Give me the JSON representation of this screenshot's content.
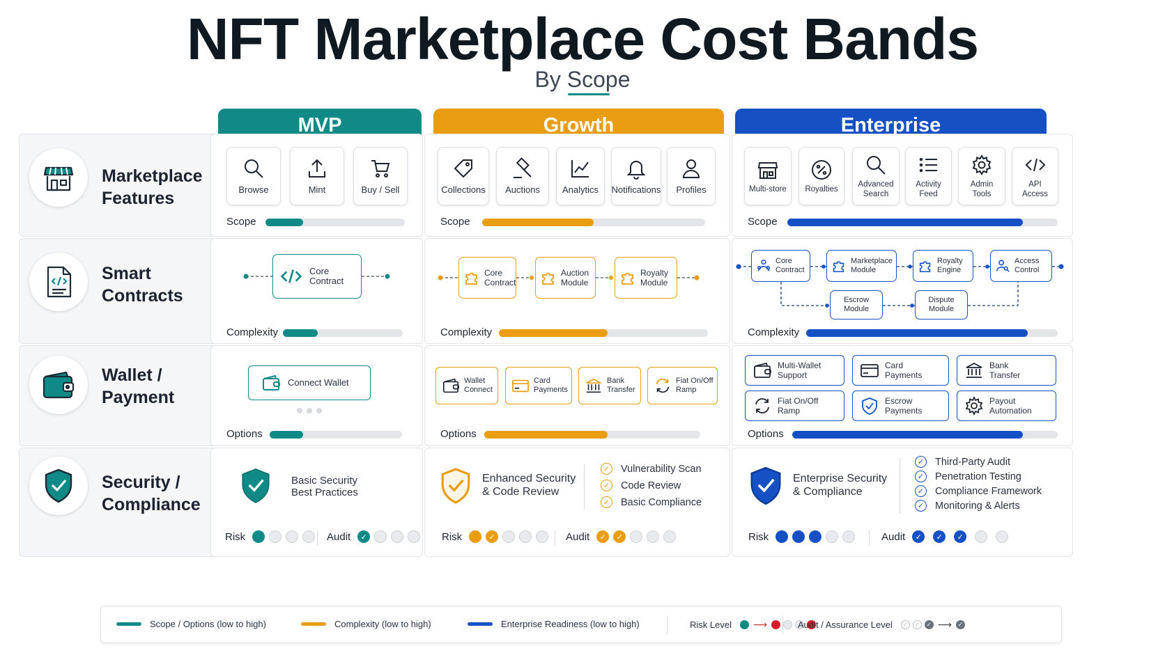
{
  "title": "NFT Marketplace Cost Bands",
  "subtitle": "By Scope",
  "columns": [
    {
      "label": "MVP",
      "color": "#0f8a86"
    },
    {
      "label": "Growth",
      "color": "#e89d12"
    },
    {
      "label": "Enterprise",
      "color": "#1550c4"
    }
  ],
  "rows": {
    "features": "Marketplace Features",
    "contracts": "Smart Contracts",
    "wallet": "Wallet / Payment",
    "security": "Security / Compliance"
  },
  "features": {
    "mvp": [
      "Browse",
      "Mint",
      "Buy / Sell"
    ],
    "growth": [
      "Collections",
      "Auctions",
      "Analytics",
      "Notifications",
      "Profiles"
    ],
    "enterprise": [
      "Multi-store",
      "Royalties",
      "Advanced Search",
      "Activity Feed",
      "Admin Tools",
      "API Access"
    ],
    "meter_label": "Scope",
    "levels": {
      "mvp": 0.21,
      "growth": 0.42,
      "enterprise": 0.76
    }
  },
  "contracts": {
    "mvp": [
      "Core Contract"
    ],
    "growth": [
      "Core Contract",
      "Auction Module",
      "Royalty Module"
    ],
    "enterprise_top": [
      "Core Contract",
      "Marketplace Module",
      "Royalty Engine",
      "Access Control"
    ],
    "enterprise_bottom": [
      "Escrow Module",
      "Dispute Module"
    ],
    "meter_label": "Complexity",
    "levels": {
      "mvp": 0.29,
      "growth": 0.52,
      "enterprise": 0.88
    }
  },
  "wallet": {
    "mvp": [
      "Connect Wallet"
    ],
    "growth": [
      "Wallet Connect",
      "Card Payments",
      "Bank Transfer",
      "Fiat On/Off Ramp"
    ],
    "enterprise": [
      "Multi-Wallet Support",
      "Card Payments",
      "Bank Transfer",
      "Fiat On/Off Ramp",
      "Escrow Payments",
      "Payout Automation"
    ],
    "meter_label": "Options",
    "levels": {
      "mvp": 0.25,
      "growth": 0.57,
      "enterprise": 0.87
    }
  },
  "security": {
    "mvp": {
      "title": "Basic Security Best Practices",
      "risk": 1,
      "audit": 1,
      "checks": []
    },
    "growth": {
      "title": "Enhanced Security & Code Review",
      "risk": 2,
      "audit": 2,
      "checks": [
        "Vulnerability Scan",
        "Code Review",
        "Basic Compliance"
      ]
    },
    "enterprise": {
      "title": "Enterprise Security & Compliance",
      "risk": 3,
      "audit": 3,
      "checks": [
        "Third-Party Audit",
        "Penetration Testing",
        "Compliance Framework",
        "Monitoring & Alerts"
      ]
    },
    "risk_label": "Risk",
    "audit_label": "Audit"
  },
  "legend": {
    "scope": "Scope / Options (low to high)",
    "complexity": "Complexity (low to high)",
    "enterprise": "Enterprise Readiness (low to high)",
    "risk": "Risk Level",
    "audit": "Audit / Assurance Level"
  }
}
